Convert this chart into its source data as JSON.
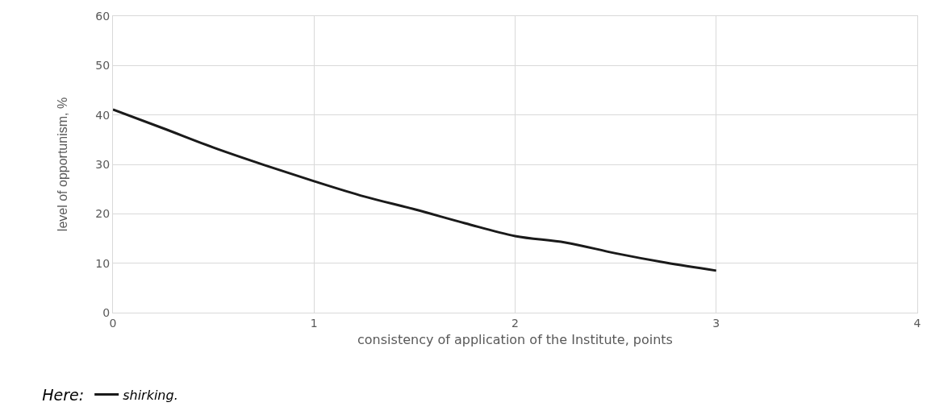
{
  "chart_data": {
    "type": "line",
    "xlabel": "consistency of application of the Institute, points",
    "ylabel": "level of opportunism, %",
    "legend_title": "Here:",
    "x": [
      0,
      0.25,
      0.5,
      0.75,
      1,
      1.25,
      1.5,
      1.75,
      2,
      2.25,
      2.5,
      2.75,
      3
    ],
    "series": [
      {
        "name": "shirking.",
        "color": "#1a1a1a",
        "values": [
          41.1,
          37.3,
          33.4,
          29.9,
          26.6,
          23.5,
          20.9,
          18.1,
          15.5,
          14.2,
          12.0,
          10.1,
          8.5
        ]
      }
    ],
    "xlim": [
      0,
      4
    ],
    "xticks": [
      0,
      1,
      2,
      3,
      4
    ],
    "ylim": [
      0,
      60
    ],
    "yticks": [
      0,
      10,
      20,
      30,
      40,
      50,
      60
    ],
    "grid": true,
    "legend": "bottom left",
    "marker": "none",
    "line_style": "solid"
  }
}
